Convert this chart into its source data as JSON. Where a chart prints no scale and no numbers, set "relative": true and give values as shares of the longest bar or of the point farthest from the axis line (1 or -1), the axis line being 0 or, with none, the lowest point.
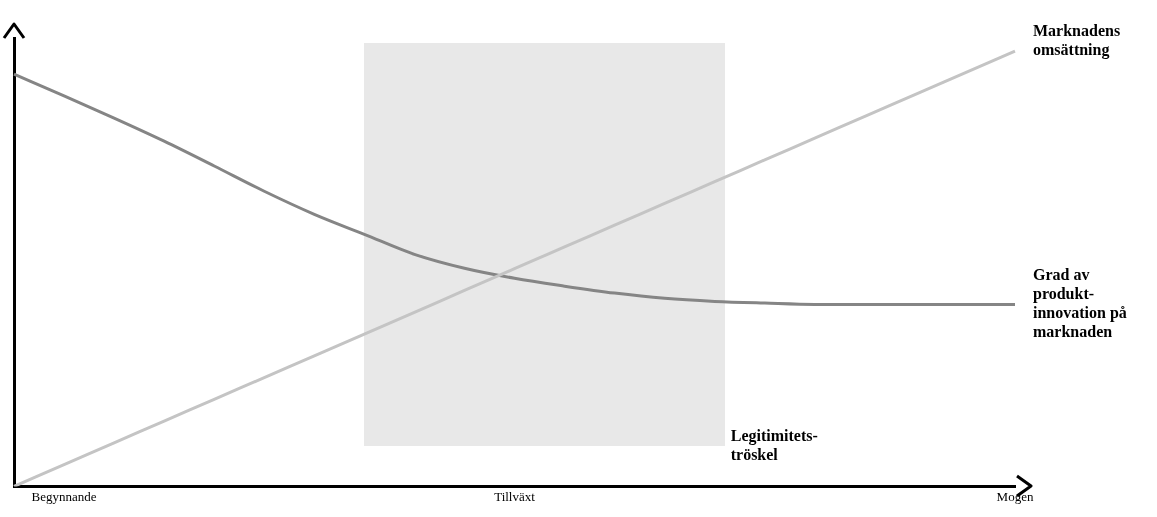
{
  "chart_data": {
    "type": "line",
    "relative": true,
    "categories": [
      null,
      "Begynnande",
      null,
      null,
      null,
      null,
      null,
      null,
      null,
      null,
      "Tillväxt",
      null,
      null,
      null,
      null,
      null,
      null,
      null,
      null,
      null,
      "Mogen"
    ],
    "series": [
      {
        "name": "Marknadens omsättning",
        "color": "#c4c4c4",
        "values": [
          0,
          0.05,
          0.1,
          0.15,
          0.2,
          0.25,
          0.3,
          0.35,
          0.4,
          0.45,
          0.5,
          0.55,
          0.6,
          0.65,
          0.7,
          0.75,
          0.8,
          0.85,
          0.9,
          0.95,
          1
        ]
      },
      {
        "name": "Grad av produkt-innovation på marknaden",
        "color": "#858585",
        "values": [
          0.947,
          0.897,
          0.846,
          0.793,
          0.736,
          0.678,
          0.625,
          0.579,
          0.533,
          0.501,
          0.478,
          0.46,
          0.444,
          0.432,
          0.425,
          0.421,
          0.418,
          0.418,
          0.418,
          0.418,
          0.418
        ]
      }
    ],
    "annotations": [
      "Legitimitets-tröskel"
    ],
    "grid": false,
    "legend": false,
    "marker": "none",
    "line_style": "solid"
  }
}
